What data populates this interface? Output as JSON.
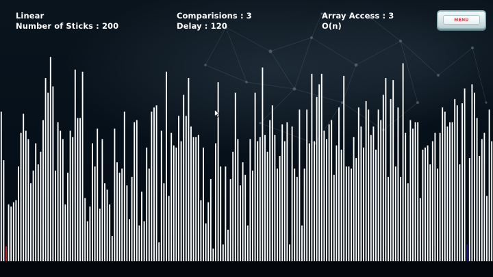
{
  "hud": {
    "algorithm": "Linear",
    "sticks_text": "Number of Sticks : 200",
    "comparisons_text": "Comparisions : 3",
    "delay_text": "Delay : 120",
    "array_access_text": "Array Access  : 3",
    "complexity": "O(n)"
  },
  "menu": {
    "label": "MENU"
  },
  "colors": {
    "stick": "#ffffff",
    "active_stick": "#c8202a",
    "target_stick": "#1e1a8c",
    "background": "#050b12"
  },
  "chart_data": {
    "type": "bar",
    "series_count": 1,
    "ylim": [
      0,
      100
    ],
    "highlight": [
      {
        "index": 2,
        "role": "active"
      },
      {
        "index": 189,
        "role": "target"
      }
    ],
    "values": [
      71,
      48,
      7,
      27,
      26,
      28,
      29,
      45,
      61,
      70,
      62,
      58,
      37,
      43,
      56,
      46,
      52,
      67,
      87,
      80,
      97,
      83,
      43,
      66,
      62,
      58,
      27,
      42,
      62,
      59,
      91,
      68,
      68,
      90,
      30,
      19,
      26,
      56,
      45,
      63,
      25,
      58,
      37,
      34,
      27,
      12,
      63,
      47,
      42,
      44,
      71,
      36,
      20,
      40,
      66,
      67,
      17,
      33,
      19,
      54,
      44,
      71,
      73,
      74,
      9,
      62,
      37,
      90,
      31,
      61,
      55,
      54,
      69,
      57,
      79,
      69,
      87,
      64,
      59,
      59,
      60,
      29,
      54,
      18,
      28,
      39,
      6,
      56,
      85,
      45,
      8,
      45,
      15,
      39,
      52,
      80,
      58,
      36,
      47,
      41,
      17,
      58,
      43,
      80,
      57,
      59,
      92,
      60,
      52,
      67,
      74,
      60,
      44,
      50,
      65,
      57,
      66,
      8,
      64,
      44,
      40,
      72,
      17,
      44,
      72,
      56,
      89,
      57,
      78,
      84,
      89,
      62,
      58,
      65,
      67,
      41,
      55,
      73,
      53,
      88,
      45,
      45,
      44,
      59,
      49,
      73,
      64,
      54,
      76,
      72,
      60,
      64,
      53,
      72,
      67,
      79,
      87,
      40,
      77,
      86,
      45,
      73,
      40,
      94,
      61,
      37,
      67,
      63,
      66,
      66,
      30,
      53,
      54,
      55,
      46,
      57,
      61,
      44,
      61,
      73,
      71,
      64,
      66,
      66,
      77,
      74,
      46,
      75,
      82,
      8,
      49,
      84,
      80,
      68,
      50,
      58,
      61,
      31,
      72,
      57
    ]
  }
}
